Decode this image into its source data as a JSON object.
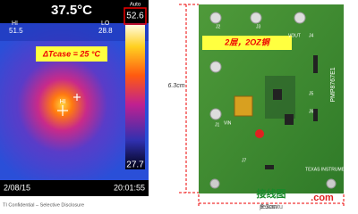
{
  "thermal": {
    "temperature": "37.5°C",
    "hi_label": "HI",
    "hi_value": "51.5",
    "lo_label": "LO",
    "lo_value": "28.8",
    "mode": "Auto",
    "scale_max": "52.6",
    "scale_min": "27.7",
    "annotation": "ΔTcase = 25 °C",
    "marker": "HI",
    "date": "2/08/15",
    "time": "20:01:55"
  },
  "footer": "TI Confidential – Selective Disclosure",
  "pcb": {
    "height": "6.3cm",
    "width": "8.3cm",
    "note": "2层，2OZ铜",
    "labels": [
      "J1",
      "VIN",
      "J3",
      "J2",
      "VOUT",
      "J4",
      "J5",
      "J6",
      "J7"
    ],
    "brand": "TEXAS INSTRUMENTS",
    "board_id": "PMP8767E1"
  },
  "watermark": {
    "title": "接线图",
    "url": "jiexiantu",
    "domain": ".com"
  }
}
